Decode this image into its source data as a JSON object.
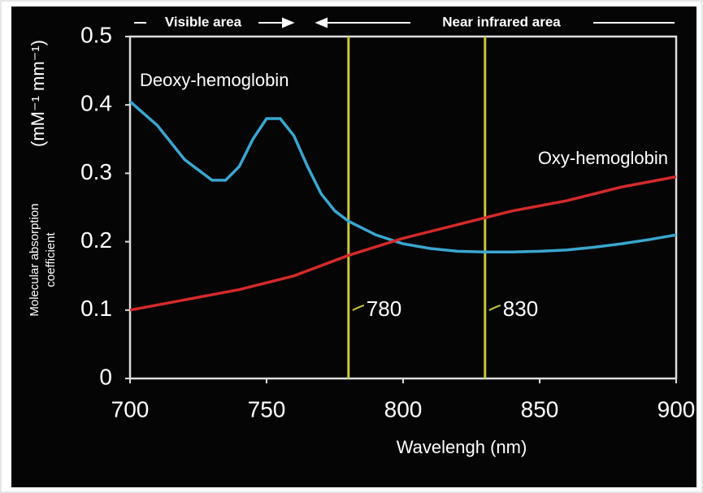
{
  "chart_data": {
    "type": "line",
    "annotations": [
      "Visible area",
      "Near infrared area"
    ],
    "ylabel": [
      "Molecular absorption",
      "coefficient",
      "(mM⁻¹ mm⁻¹)"
    ],
    "xlabel": "Wavelengh (nm)",
    "xlim": [
      700,
      900
    ],
    "xticks": [
      700,
      750,
      800,
      850,
      900
    ],
    "ylim": [
      0,
      0.5
    ],
    "yticks": [
      0,
      0.1,
      0.2,
      0.3,
      0.4,
      0.5
    ],
    "vlines": [
      780,
      830
    ],
    "vline_color": "#c8c43c",
    "series": [
      {
        "name": "Deoxy-hemoglobin",
        "color": "#3aa6d0",
        "x": [
          700,
          710,
          720,
          730,
          735,
          740,
          745,
          750,
          755,
          760,
          765,
          770,
          775,
          780,
          790,
          800,
          810,
          820,
          830,
          840,
          850,
          860,
          870,
          880,
          890,
          900
        ],
        "values": [
          0.405,
          0.37,
          0.32,
          0.29,
          0.29,
          0.31,
          0.35,
          0.38,
          0.38,
          0.355,
          0.31,
          0.27,
          0.245,
          0.23,
          0.21,
          0.197,
          0.19,
          0.186,
          0.185,
          0.185,
          0.186,
          0.188,
          0.192,
          0.197,
          0.203,
          0.21
        ]
      },
      {
        "name": "Oxy-hemoglobin",
        "color": "#d42a2a",
        "x": [
          700,
          720,
          740,
          760,
          780,
          800,
          820,
          840,
          860,
          880,
          900
        ],
        "values": [
          0.1,
          0.115,
          0.13,
          0.15,
          0.18,
          0.205,
          0.225,
          0.245,
          0.26,
          0.28,
          0.295
        ]
      }
    ]
  }
}
